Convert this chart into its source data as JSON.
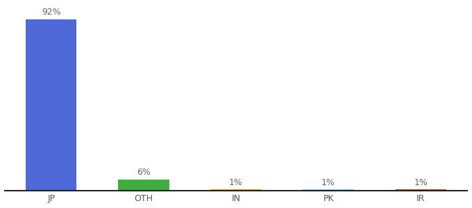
{
  "categories": [
    "JP",
    "OTH",
    "IN",
    "PK",
    "IR"
  ],
  "values": [
    92,
    6,
    1,
    1,
    1
  ],
  "labels": [
    "92%",
    "6%",
    "1%",
    "1%",
    "1%"
  ],
  "bar_colors": [
    "#4f69d9",
    "#3eaf3e",
    "#f0a500",
    "#87ceeb",
    "#c0522a"
  ],
  "background_color": "#ffffff",
  "ylim": [
    0,
    100
  ],
  "label_fontsize": 9,
  "tick_fontsize": 9,
  "bar_width": 0.55
}
